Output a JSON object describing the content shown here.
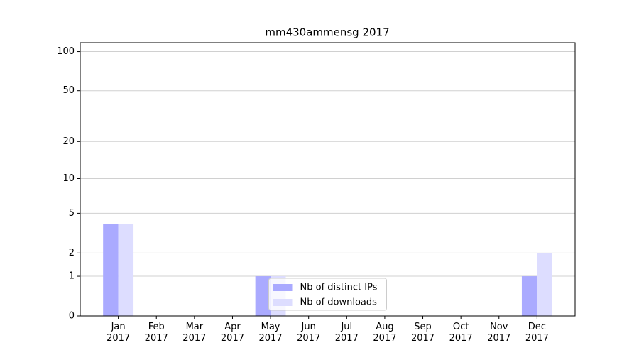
{
  "chart_data": {
    "type": "bar",
    "title": "mm430ammensg 2017",
    "categories": [
      "Jan 2017",
      "Feb 2017",
      "Mar 2017",
      "Apr 2017",
      "May 2017",
      "Jun 2017",
      "Jul 2017",
      "Aug 2017",
      "Sep 2017",
      "Oct 2017",
      "Nov 2017",
      "Dec 2017"
    ],
    "series": [
      {
        "name": "Nb of distinct IPs",
        "color": "#aaaaff",
        "values": [
          4,
          0,
          0,
          0,
          1,
          0,
          0,
          0,
          0,
          0,
          0,
          1
        ]
      },
      {
        "name": "Nb of downloads",
        "color": "#ddddff",
        "values": [
          4,
          0,
          0,
          0,
          1,
          0,
          0,
          0,
          0,
          0,
          0,
          2
        ]
      }
    ],
    "yscale": "log1p",
    "ylim": [
      0,
      117
    ],
    "yticks": [
      0,
      1,
      2,
      5,
      10,
      20,
      50,
      100
    ],
    "grid": true,
    "legend": "lower center"
  }
}
